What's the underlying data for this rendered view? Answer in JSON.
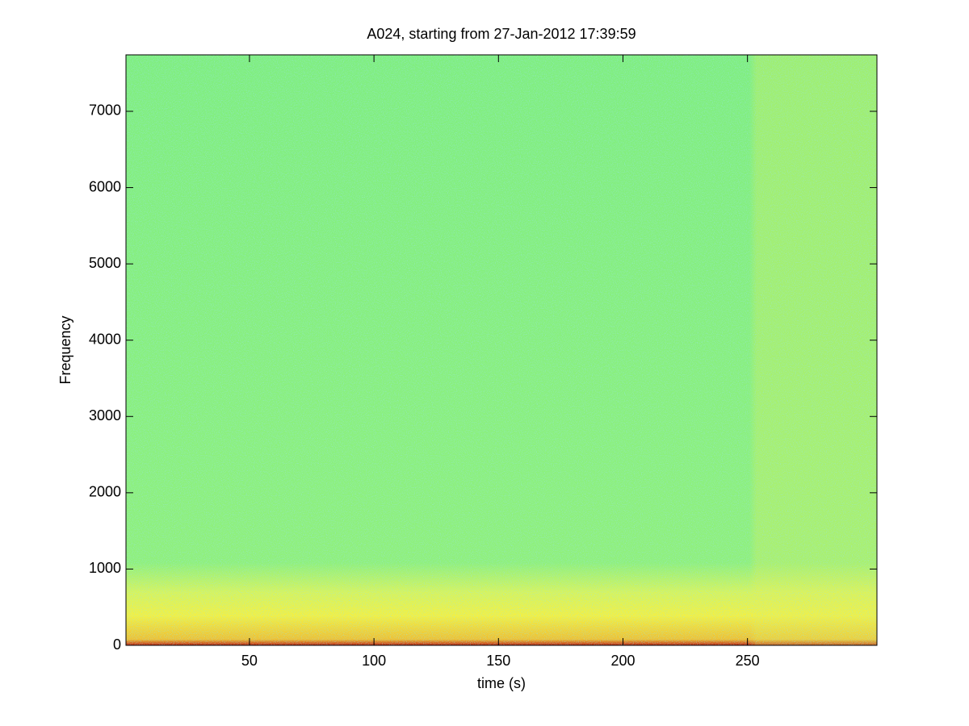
{
  "chart_data": {
    "type": "spectrogram",
    "title": "A024, starting from 27-Jan-2012 17:39:59",
    "x_label": "time (s)",
    "y_label": "Frequency",
    "xlim": [
      0.4,
      302
    ],
    "xticks": [
      50,
      100,
      150,
      200,
      250
    ],
    "ylim": [
      0,
      7740
    ],
    "yticks": [
      0,
      1000,
      2000,
      3000,
      4000,
      5000,
      6000,
      7000
    ]
  }
}
